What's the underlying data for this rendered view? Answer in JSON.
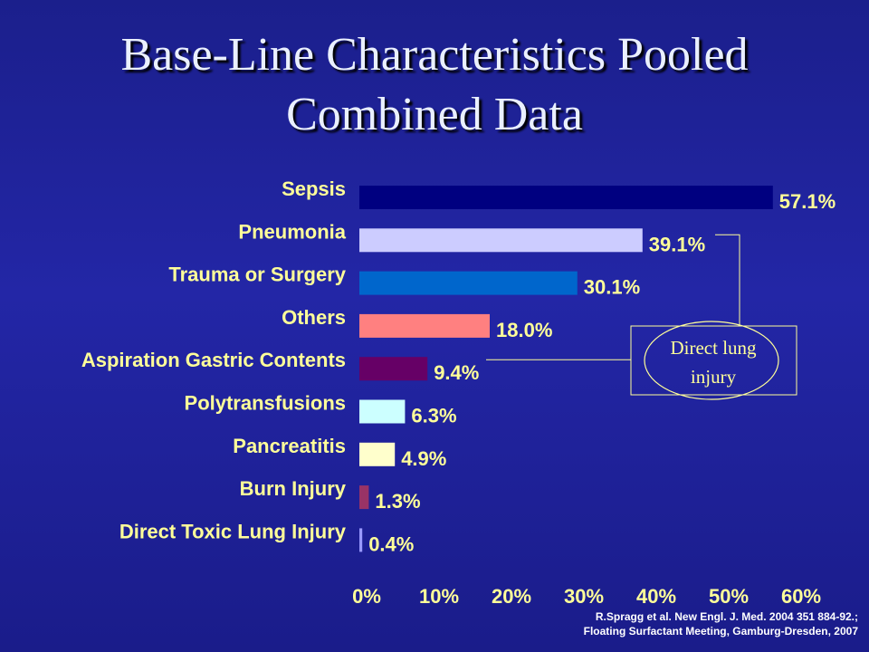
{
  "title": {
    "line1": "Base-Line Characteristics Pooled",
    "line2": "Combined Data"
  },
  "chart_data": {
    "type": "bar",
    "orientation": "horizontal",
    "categories": [
      "Sepsis",
      "Pneumonia",
      "Trauma or Surgery",
      "Others",
      "Aspiration Gastric Contents",
      "Polytransfusions",
      "Pancreatitis",
      "Burn Injury",
      "Direct Toxic Lung Injury"
    ],
    "values": [
      57.1,
      39.1,
      30.1,
      18.0,
      9.4,
      6.3,
      4.9,
      1.3,
      0.4
    ],
    "value_labels": [
      "57.1%",
      "39.1%",
      "30.1%",
      "18.0%",
      "9.4%",
      "6.3%",
      "4.9%",
      "1.3%",
      "0.4%"
    ],
    "bar_colors": [
      "#000080",
      "#ccccff",
      "#0066cc",
      "#ff8080",
      "#660066",
      "#ccffff",
      "#ffffcc",
      "#993366",
      "#9999ff"
    ],
    "xlim": [
      0,
      60
    ],
    "x_ticks": [
      "0%",
      "10%",
      "20%",
      "30%",
      "40%",
      "50%",
      "60%"
    ],
    "grid": false,
    "annotation": {
      "line1": "Direct lung",
      "line2": "injury",
      "points_to": [
        "Pneumonia",
        "Aspiration Gastric Contents"
      ]
    }
  },
  "citation": {
    "line1": "R.Spragg et al. New Engl. J. Med. 2004 351 884-92.;",
    "line2": "Floating Surfactant Meeting, Gamburg-Dresden, 2007"
  }
}
